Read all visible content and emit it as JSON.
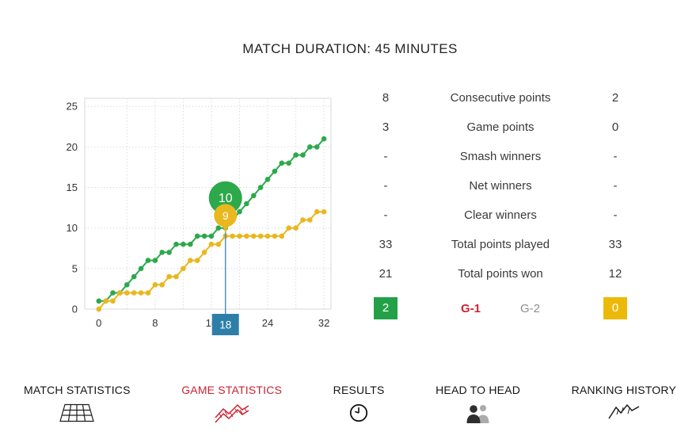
{
  "title": "MATCH DURATION: 45 MINUTES",
  "stats": {
    "rows": [
      {
        "left": "8",
        "label": "Consecutive points",
        "right": "2"
      },
      {
        "left": "3",
        "label": "Game points",
        "right": "0"
      },
      {
        "left": "-",
        "label": "Smash winners",
        "right": "-"
      },
      {
        "left": "-",
        "label": "Net winners",
        "right": "-"
      },
      {
        "left": "-",
        "label": "Clear winners",
        "right": "-"
      },
      {
        "left": "33",
        "label": "Total points played",
        "right": "33"
      },
      {
        "left": "21",
        "label": "Total points won",
        "right": "12"
      }
    ]
  },
  "games": {
    "player1_games": "2",
    "player1_color": "#24a148",
    "game1_label": "G-1",
    "game1_active_color": "#cb2233",
    "game2_label": "G-2",
    "game2_color": "#8d8d8d",
    "player2_games": "0",
    "player2_color": "#edb909"
  },
  "nav": {
    "active_color": "#cb2233",
    "items": [
      {
        "label": "MATCH STATISTICS",
        "active": false
      },
      {
        "label": "GAME STATISTICS",
        "active": true
      },
      {
        "label": "RESULTS",
        "active": false
      },
      {
        "label": "HEAD TO HEAD",
        "active": false
      },
      {
        "label": "RANKING HISTORY",
        "active": false
      }
    ]
  },
  "chart_data": {
    "type": "line",
    "title": "",
    "xlabel": "",
    "ylabel": "",
    "xlim": [
      -2,
      33
    ],
    "ylim": [
      0,
      26
    ],
    "xticks": [
      0,
      8,
      16,
      24,
      32
    ],
    "yticks": [
      0,
      5,
      10,
      15,
      20,
      25
    ],
    "grid": true,
    "x": [
      0,
      1,
      2,
      3,
      4,
      5,
      6,
      7,
      8,
      9,
      10,
      11,
      12,
      13,
      14,
      15,
      16,
      17,
      18,
      19,
      20,
      21,
      22,
      23,
      24,
      25,
      26,
      27,
      28,
      29,
      30,
      31,
      32
    ],
    "series": [
      {
        "name": "player1-green",
        "color": "#2ca94b",
        "values": [
          1,
          1,
          2,
          2,
          3,
          4,
          5,
          6,
          6,
          7,
          7,
          8,
          8,
          8,
          9,
          9,
          9,
          10,
          10,
          11,
          12,
          13,
          14,
          15,
          16,
          17,
          18,
          18,
          19,
          19,
          20,
          20,
          21
        ]
      },
      {
        "name": "player2-yellow",
        "color": "#e9b71e",
        "values": [
          0,
          1,
          1,
          2,
          2,
          2,
          2,
          2,
          3,
          3,
          4,
          4,
          5,
          6,
          6,
          7,
          8,
          8,
          9,
          9,
          9,
          9,
          9,
          9,
          9,
          9,
          9,
          10,
          10,
          11,
          11,
          12,
          12
        ]
      }
    ],
    "marker": {
      "x": 18,
      "values": [
        10,
        9
      ],
      "axis_label": "18",
      "line_color": "#4f93b8",
      "box_color": "#2e7fa8"
    }
  }
}
